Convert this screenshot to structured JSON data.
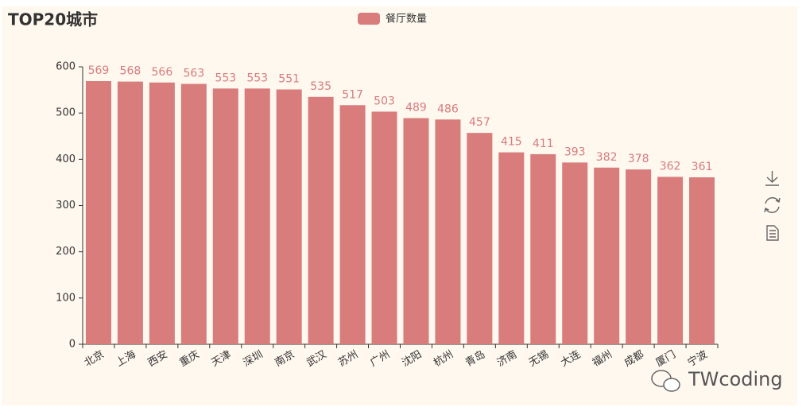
{
  "chart_data": {
    "type": "bar",
    "title": "TOP20城市",
    "categories": [
      "北京",
      "上海",
      "西安",
      "重庆",
      "天津",
      "深圳",
      "南京",
      "武汉",
      "苏州",
      "广州",
      "沈阳",
      "杭州",
      "青岛",
      "济南",
      "无锡",
      "大连",
      "福州",
      "成都",
      "厦门",
      "宁波"
    ],
    "series": [
      {
        "name": "餐厅数量",
        "color": "#d87c7c",
        "values": [
          569,
          568,
          566,
          563,
          553,
          553,
          551,
          535,
          517,
          503,
          489,
          486,
          457,
          415,
          411,
          393,
          382,
          378,
          362,
          361
        ]
      }
    ],
    "ylim": [
      0,
      600
    ],
    "yticks": [
      0,
      100,
      200,
      300,
      400,
      500,
      600
    ],
    "grid": false,
    "legend": "top",
    "value_labels_shown": true
  },
  "watermark": "TWcoding"
}
